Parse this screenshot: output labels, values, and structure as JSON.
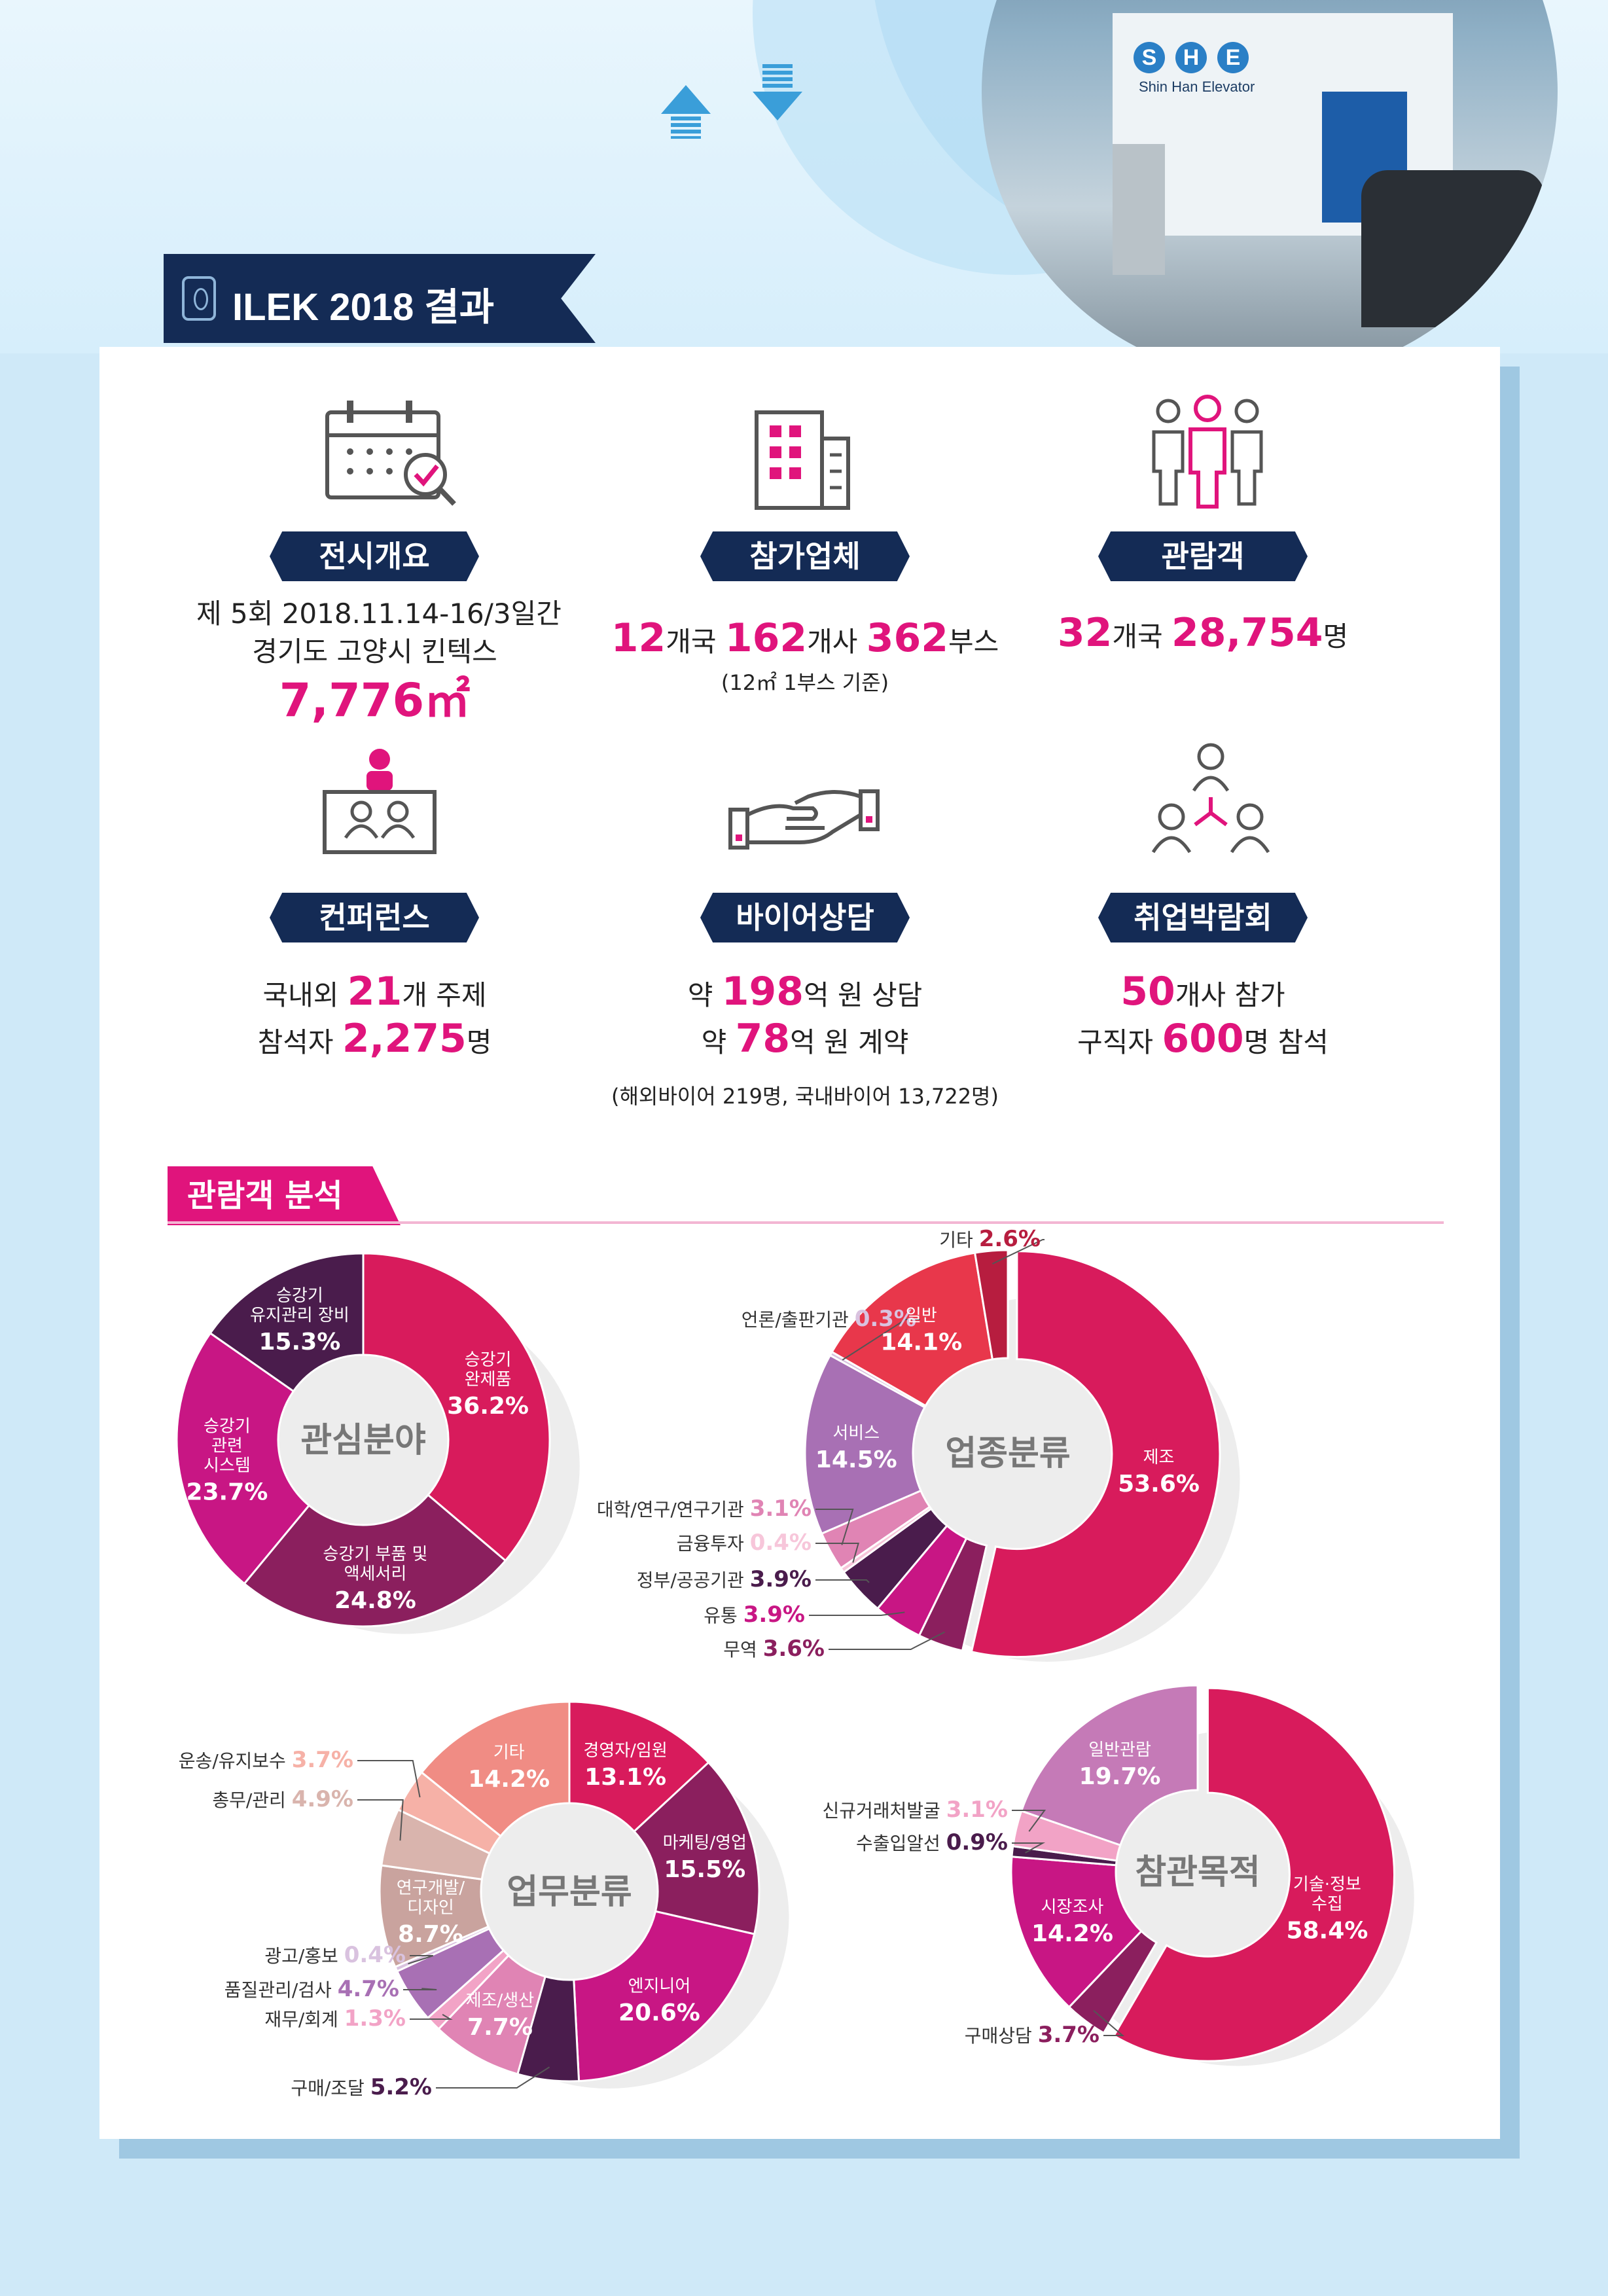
{
  "header": {
    "title": "ILEK 2018 결과",
    "photo_brand": [
      "S",
      "H",
      "E"
    ],
    "photo_caption": "Shin Han Elevator"
  },
  "sections": {
    "exhibition": {
      "label": "전시개요",
      "line1": "제 5회 2018.11.14-16/3일간",
      "line2": "경기도 고양시 킨텍스",
      "area": "7,776㎡"
    },
    "exhibitors": {
      "label": "참가업체",
      "countries": "12",
      "countries_unit": "개국",
      "companies": "162",
      "companies_unit": "개사",
      "booths": "362",
      "booths_unit": "부스",
      "note": "(12㎡ 1부스 기준)"
    },
    "visitors": {
      "label": "관람객",
      "countries": "32",
      "countries_unit": "개국",
      "count": "28,754",
      "count_unit": "명"
    },
    "conference": {
      "label": "컨퍼런스",
      "line1_pre": "국내외",
      "topics": "21",
      "line1_post": "개 주제",
      "line2_pre": "참석자",
      "attendees": "2,275",
      "line2_post": "명"
    },
    "buyer": {
      "label": "바이어상담",
      "line1_pre": "약",
      "consult": "198",
      "line1_post": "억 원 상담",
      "line2_pre": "약",
      "contract": "78",
      "line2_post": "억 원 계약",
      "note": "(해외바이어 219명, 국내바이어 13,722명)"
    },
    "jobfair": {
      "label": "취업박람회",
      "companies": "50",
      "line1_post": "개사 참가",
      "line2_pre": "구직자",
      "seekers": "600",
      "line2_post": "명 참석"
    }
  },
  "analysis": {
    "title": "관람객 분석"
  },
  "colors": {
    "navy": "#142b55",
    "pink": "#e0147c",
    "crimson": "#d81b5c",
    "plum": "#8b1f5e",
    "dark_purple": "#4a1c4c",
    "magenta": "#c81684",
    "lavender": "#a870b4",
    "light_pink": "#f2a3c6",
    "red": "#e8374b",
    "dark_red": "#b71d3f",
    "salmon": "#f08c84",
    "peach": "#f6b1a7",
    "taupe": "#c9a39e"
  },
  "chart_data": [
    {
      "type": "pie",
      "title": "관심분야",
      "categories": [
        "승강기 완제품",
        "승강기 부품 및 액세서리",
        "승강기 관련 시스템",
        "승강기 유지관리 장비"
      ],
      "values": [
        36.2,
        24.8,
        23.7,
        15.3
      ],
      "labels": [
        "36.2%",
        "24.8%",
        "23.7%",
        "15.3%"
      ],
      "colors": [
        "#d81b5c",
        "#8b1f5e",
        "#c81684",
        "#4a1c4c"
      ]
    },
    {
      "type": "pie",
      "title": "업종분류",
      "categories": [
        "제조",
        "무역",
        "유통",
        "정부/공공기관",
        "금융투자",
        "대학/연구/연구기관",
        "서비스",
        "언론/출판기관",
        "일반",
        "기타"
      ],
      "values": [
        53.6,
        3.6,
        3.9,
        3.9,
        0.4,
        3.1,
        14.5,
        0.3,
        14.1,
        2.6
      ],
      "labels": [
        "53.6%",
        "3.6%",
        "3.9%",
        "3.9%",
        "0.4%",
        "3.1%",
        "14.5%",
        "0.3%",
        "14.1%",
        "2.6%"
      ],
      "colors": [
        "#d81b5c",
        "#8b1f5e",
        "#c81684",
        "#4a1c4c",
        "#f7c6da",
        "#e084b4",
        "#a870b4",
        "#d9c2df",
        "#e8374b",
        "#b71d3f"
      ]
    },
    {
      "type": "pie",
      "title": "업무분류",
      "categories": [
        "경영자/임원",
        "마케팅/영업",
        "엔지니어",
        "구매/조달",
        "제조/생산",
        "재무/회계",
        "품질관리/검사",
        "광고/홍보",
        "연구개발/디자인",
        "총무/관리",
        "운송/유지보수",
        "기타"
      ],
      "values": [
        13.1,
        15.5,
        20.6,
        5.2,
        7.7,
        1.3,
        4.7,
        0.4,
        8.7,
        4.9,
        3.7,
        14.2
      ],
      "labels": [
        "13.1%",
        "15.5%",
        "20.6%",
        "5.2%",
        "7.7%",
        "1.3%",
        "4.7%",
        "0.4%",
        "8.7%",
        "4.9%",
        "3.7%",
        "14.2%"
      ],
      "colors": [
        "#d81b5c",
        "#8b1f5e",
        "#c81684",
        "#4a1c4c",
        "#e084b4",
        "#f2a3c6",
        "#a870b4",
        "#d9c2df",
        "#c9a39e",
        "#d9b4ad",
        "#f6b1a7",
        "#f08c84"
      ]
    },
    {
      "type": "pie",
      "title": "참관목적",
      "categories": [
        "기술·정보 수집",
        "구매상담",
        "시장조사",
        "수출입알선",
        "신규거래처발굴",
        "일반관람"
      ],
      "values": [
        58.4,
        3.7,
        14.2,
        0.9,
        3.1,
        19.7
      ],
      "labels": [
        "58.4%",
        "3.7%",
        "14.2%",
        "0.9%",
        "3.1%",
        "19.7%"
      ],
      "colors": [
        "#d81b5c",
        "#8b1f5e",
        "#c81684",
        "#4a1c4c",
        "#f2a3c6",
        "#c57ab7"
      ]
    }
  ]
}
